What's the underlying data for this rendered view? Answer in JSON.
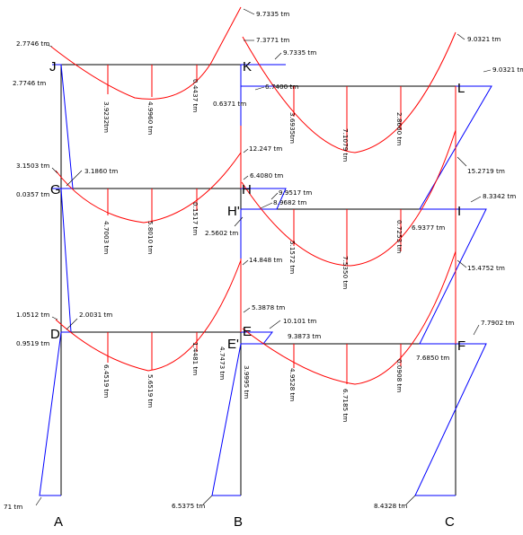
{
  "colors": {
    "frame": "#000000",
    "column_moment": "#0000ff",
    "beam_moment": "#ff0000",
    "ordinate": "#ff0000",
    "text": "#000000"
  },
  "nodes": [
    "J",
    "K",
    "L",
    "G",
    "H",
    "H'",
    "I",
    "D",
    "E",
    "E'",
    "F"
  ],
  "bases": [
    "A",
    "B",
    "C"
  ],
  "moments": {
    "j_top": "2.7746 tm",
    "j_mid": "2.7746 tm",
    "jk_1": "3.9232tm",
    "jk_2": "4.9960 tm",
    "jk_3": "0.4437 tm",
    "k_top": "9.7335 tm",
    "k_1": "7.3771 tm",
    "k_2": "9.7335 tm",
    "k_3": "6.7400 tm",
    "k_4": "0.6371 tm",
    "kl_1": "3.6935tm",
    "kl_2": "7.1079 tm",
    "kl_3": "2.8660 tm",
    "l_top": "9.0321 tm",
    "l_right": "9.0321 tm",
    "g_1": "3.1503 tm",
    "g_2": "3.1860 tm",
    "g_3": "0.0357 tm",
    "gh_1": "4.7003 tm",
    "gh_2": "5.8010 tm",
    "gh_3": "0.1517 tm",
    "h_1": "12.247 tm",
    "h_2": "6.4080 tm",
    "h_3": "9.9517 tm",
    "h_4": "8.9682 tm",
    "h_5": "2.5602 tm",
    "hi_1": "5.1572 tm",
    "hi_2": "7.5350 tm",
    "hi_3": "0.7253 tm",
    "i_1": "15.2719 tm",
    "i_2": "8.3342 tm",
    "i_3": "6.9377 tm",
    "d_1": "1.0512 tm",
    "d_2": "2.0031 tm",
    "d_3": "0.9519 tm",
    "de_1": "6.4519 tm",
    "de_2": "5.6519 tm",
    "de_3": "1.4481 tm",
    "e_1": "14.848 tm",
    "e_2": "5.3878 tm",
    "e_3": "10.101 tm",
    "e_4": "9.3873 tm",
    "e_5": "4.7473 tm",
    "e_6": "3.9995 tm",
    "ef_1": "4.9528 tm",
    "ef_2": "6.7185 tm",
    "ef_3": "0.0908 tm",
    "f_1": "15.4752 tm",
    "f_2": "7.7902 tm",
    "f_3": "7.6850 tm",
    "base_a": "71 tm",
    "base_b": "6.5375 tm",
    "base_c": "8.4328 tm"
  }
}
